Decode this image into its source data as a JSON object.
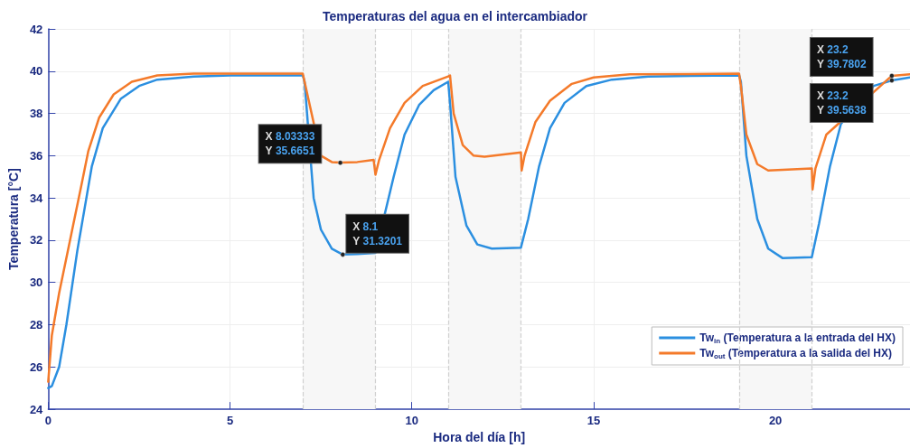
{
  "chart_data": {
    "type": "line",
    "title": "Temperaturas del agua en el intercambiador",
    "xlabel": "Hora del día [h]",
    "ylabel": "Temperatura [°C]",
    "xlim": [
      0,
      23.7
    ],
    "xticks": [
      0,
      5,
      10,
      15,
      20
    ],
    "ylim": [
      24,
      42
    ],
    "yticks": [
      24,
      26,
      28,
      30,
      32,
      34,
      36,
      38,
      40,
      42
    ],
    "grid": true,
    "legend": "bottom right",
    "marker": "none",
    "line_style": "solid",
    "series": [
      {
        "name": "Tw$_{in}$ (Temperatura a la entrada del HX)",
        "color": "#2b8fe0",
        "x": [
          0,
          0.1,
          0.3,
          0.5,
          0.8,
          1.0,
          1.2,
          1.5,
          2,
          2.5,
          3,
          4,
          5,
          7,
          7.05,
          7.1,
          7.3,
          7.5,
          7.8,
          8.1,
          8.5,
          9.0,
          9.2,
          9.5,
          9.8,
          10.2,
          10.6,
          11.0,
          11.05,
          11.2,
          11.5,
          11.8,
          12.2,
          13.0,
          13.2,
          13.5,
          13.8,
          14.2,
          14.8,
          15.5,
          16.5,
          19.0,
          19.05,
          19.2,
          19.5,
          19.8,
          20.2,
          21.0,
          21.2,
          21.5,
          21.8,
          22.2,
          22.7,
          23.2,
          23.7
        ],
        "values": [
          25.0,
          25.1,
          26,
          28,
          31.5,
          33.5,
          35.5,
          37.3,
          38.7,
          39.3,
          39.6,
          39.75,
          39.8,
          39.8,
          39.5,
          null,
          34,
          32.5,
          31.6,
          31.32,
          31.35,
          31.4,
          null,
          35,
          37,
          38.4,
          39.1,
          39.5,
          38.5,
          35,
          32.7,
          31.8,
          31.6,
          31.65,
          33,
          35.5,
          37.3,
          38.5,
          39.3,
          39.6,
          39.75,
          39.8,
          39.5,
          36,
          33,
          31.6,
          31.15,
          31.2,
          32.8,
          35.5,
          37.5,
          null,
          39.3,
          39.56,
          39.7
        ]
      },
      {
        "name": "Tw$_{out}$ (Temperatura a la salida del HX)",
        "color": "#f47a2a",
        "x": [
          0,
          0.1,
          0.3,
          0.6,
          0.9,
          1.1,
          1.4,
          1.8,
          2.3,
          3,
          4,
          7,
          7.05,
          7.2,
          7.5,
          7.8,
          8.03,
          8.5,
          8.95,
          9.0,
          9.1,
          9.4,
          9.8,
          10.3,
          11.0,
          11.05,
          11.15,
          11.4,
          11.7,
          12.0,
          13.0,
          13.02,
          13.1,
          13.4,
          13.8,
          14.4,
          15,
          16,
          19,
          19.05,
          19.2,
          19.5,
          19.8,
          21.0,
          21.02,
          21.1,
          21.4,
          21.8,
          22.4,
          23.2,
          23.7
        ],
        "values": [
          25.3,
          27.5,
          29.5,
          32,
          34.5,
          36.2,
          37.8,
          38.9,
          39.5,
          39.8,
          39.88,
          39.88,
          39.5,
          null,
          36,
          35.7,
          35.67,
          35.7,
          35.8,
          35.1,
          35.8,
          37.3,
          38.5,
          39.3,
          39.75,
          39.8,
          38,
          36.5,
          36.0,
          35.95,
          36.15,
          35.3,
          36,
          37.6,
          38.6,
          39.4,
          39.7,
          39.85,
          39.88,
          39.3,
          37,
          35.6,
          35.3,
          35.4,
          34.4,
          35.4,
          37,
          null,
          null,
          39.78,
          39.85
        ]
      }
    ],
    "bands": [
      {
        "axis": "x",
        "from": 7,
        "to": 9,
        "color": "#f7f7f7"
      },
      {
        "axis": "x",
        "from": 11,
        "to": 13,
        "color": "#f7f7f7"
      },
      {
        "axis": "x",
        "from": 19,
        "to": 21,
        "color": "#f7f7f7"
      }
    ],
    "ref_lines": [
      {
        "axis": "x",
        "value": 7,
        "color": "#d0d0d0",
        "line_style": "dashed"
      },
      {
        "axis": "x",
        "value": 9,
        "color": "#d0d0d0",
        "line_style": "dashed"
      },
      {
        "axis": "x",
        "value": 11,
        "color": "#d0d0d0",
        "line_style": "dashed"
      },
      {
        "axis": "x",
        "value": 13,
        "color": "#d0d0d0",
        "line_style": "dashed"
      },
      {
        "axis": "x",
        "value": 19,
        "color": "#d0d0d0",
        "line_style": "dashed"
      },
      {
        "axis": "x",
        "value": 21,
        "color": "#d0d0d0",
        "line_style": "dashed"
      }
    ],
    "annotations": [
      {
        "text": "X 8.03333\nY 35.6651",
        "x": 8.03333,
        "y": 35.6651
      },
      {
        "text": "X 8.1\nY 31.3201",
        "x": 8.1,
        "y": 31.3201
      },
      {
        "text": "X 23.2\nY 39.7802",
        "x": 23.2,
        "y": 39.7802
      },
      {
        "text": "X 23.2\nY 39.5638",
        "x": 23.2,
        "y": 39.5638
      }
    ]
  }
}
